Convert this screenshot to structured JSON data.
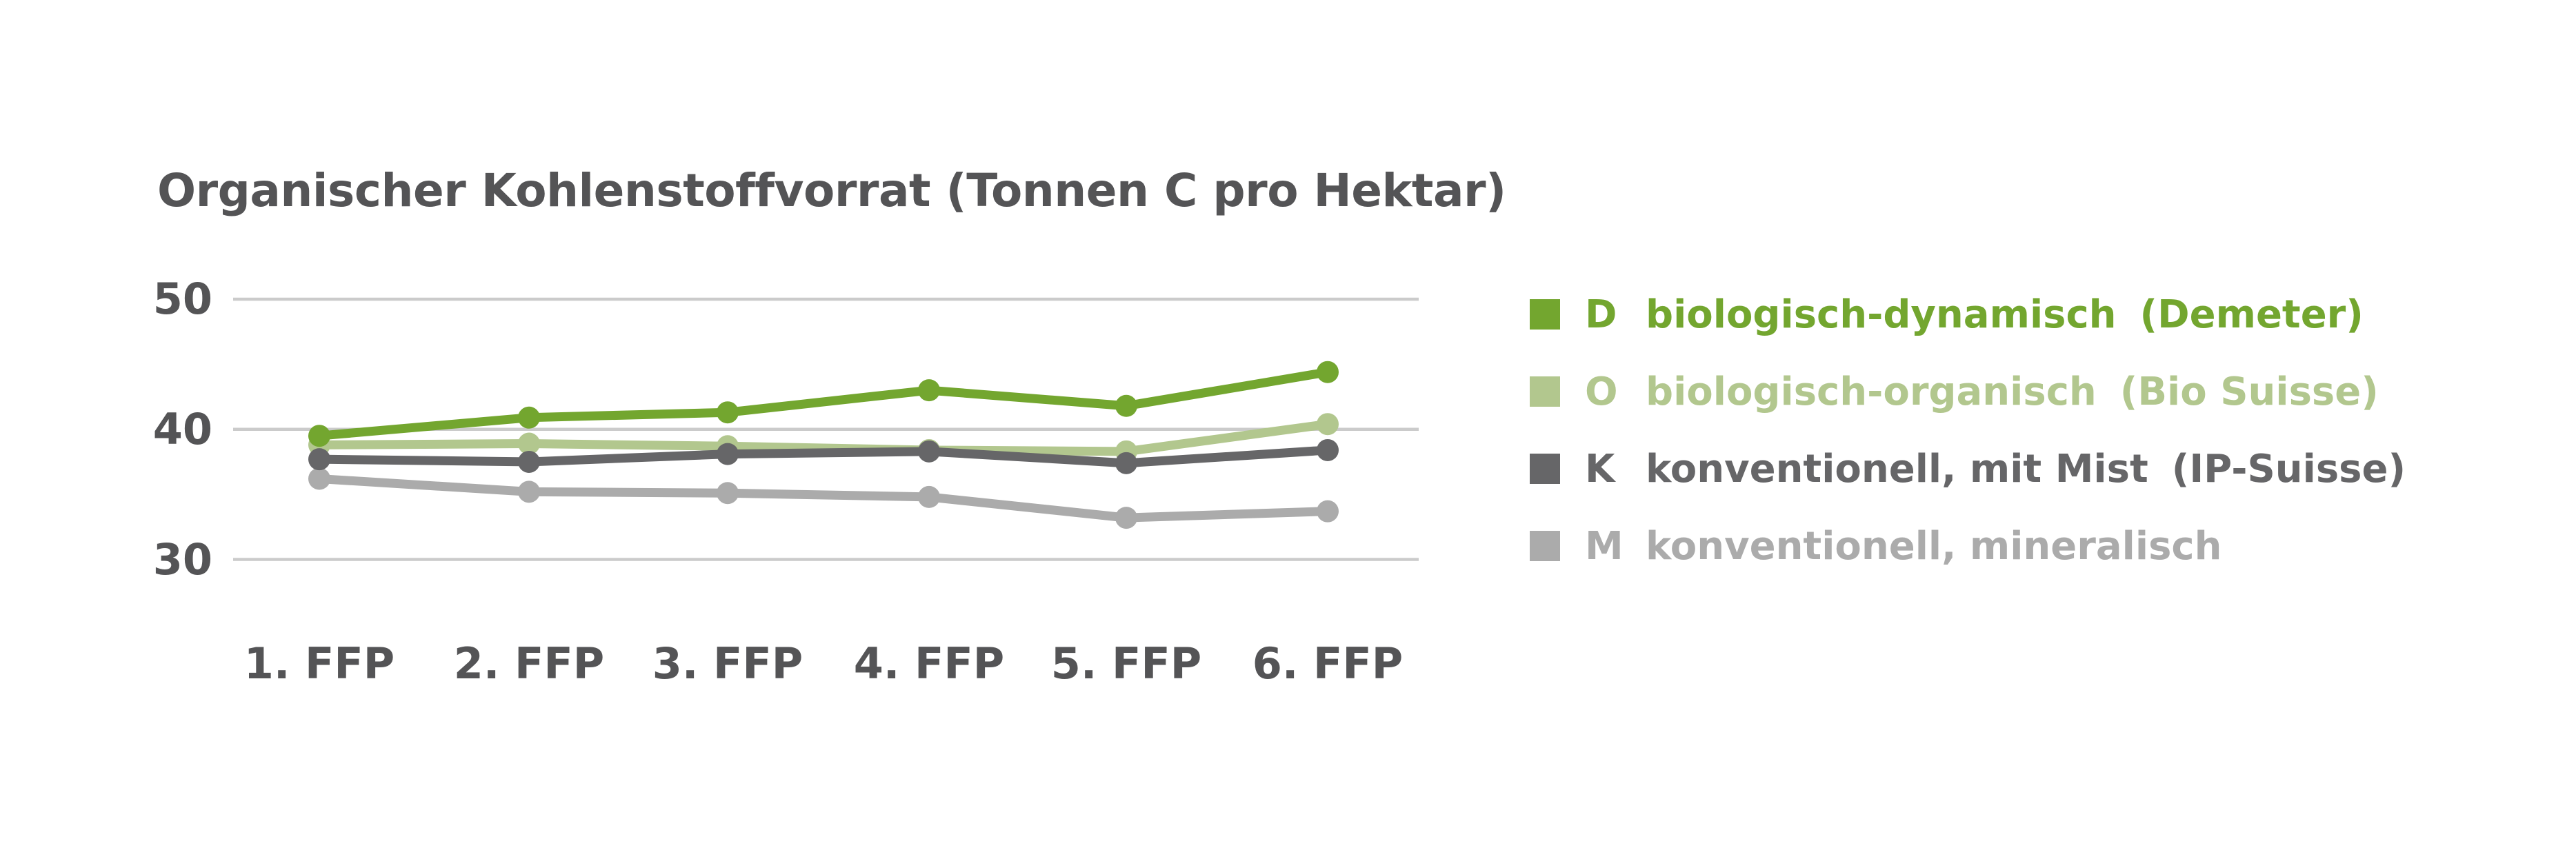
{
  "title": "Organischer Kohlenstoffvorrat (Tonnen C pro Hektar)",
  "colors": {
    "text": "#545456",
    "grid": "#cbcbcb",
    "background": "#ffffff"
  },
  "legend": {
    "position": "right",
    "items": [
      {
        "key": "D",
        "label": "biologisch-dynamisch",
        "qualifier": "(Demeter)",
        "color": "#73A62F"
      },
      {
        "key": "O",
        "label": "biologisch-organisch",
        "qualifier": "(Bio Suisse)",
        "color": "#B2C78E"
      },
      {
        "key": "K",
        "label": "konventionell, mit Mist",
        "qualifier": "(IP-Suisse)",
        "color": "#666668"
      },
      {
        "key": "M",
        "label": "konventionell, mineralisch",
        "qualifier": "",
        "color": "#ABABAB"
      }
    ]
  },
  "chart_data": {
    "type": "line",
    "title": "Organischer Kohlenstoffvorrat (Tonnen C pro Hektar)",
    "categories": [
      "1. FFP",
      "2. FFP",
      "3. FFP",
      "4. FFP",
      "5. FFP",
      "6. FFP"
    ],
    "series": [
      {
        "key": "M",
        "name": "konventionell, mineralisch",
        "color": "#ABABAB",
        "values": [
          36.2,
          35.2,
          35.1,
          34.8,
          33.2,
          33.7
        ]
      },
      {
        "key": "O",
        "name": "biologisch-organisch (Bio Suisse)",
        "color": "#B2C78E",
        "values": [
          38.8,
          38.9,
          38.7,
          38.4,
          38.3,
          40.4
        ]
      },
      {
        "key": "K",
        "name": "konventionell, mit Mist (IP-Suisse)",
        "color": "#666668",
        "values": [
          37.7,
          37.5,
          38.1,
          38.3,
          37.4,
          38.4
        ]
      },
      {
        "key": "D",
        "name": "biologisch-dynamisch (Demeter)",
        "color": "#73A62F",
        "values": [
          39.5,
          40.9,
          41.3,
          43.0,
          41.8,
          44.4
        ]
      }
    ],
    "xlabel": "",
    "ylabel": "Tonnen C pro Hektar",
    "yticks": [
      50,
      40,
      30
    ],
    "ylim": [
      28,
      52
    ],
    "grid": "horizontal",
    "legend_order": [
      "D",
      "O",
      "K",
      "M"
    ]
  }
}
